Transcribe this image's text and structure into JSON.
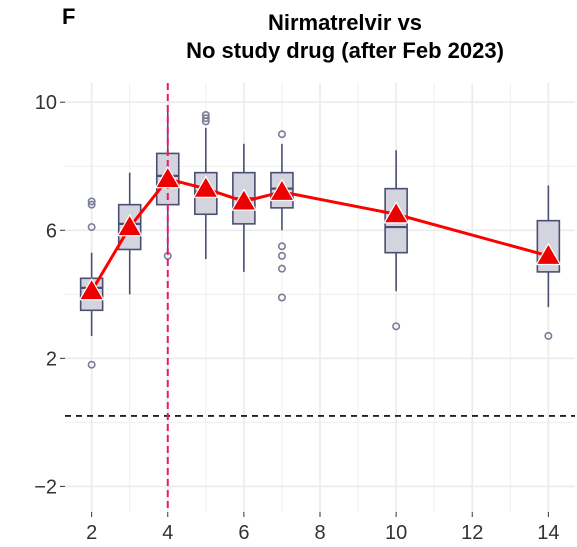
{
  "panel_label": "F",
  "title_lines": [
    "Nirmatrelvir vs",
    "No study drug (after Feb 2023)"
  ],
  "colors": {
    "box_fill": "#d4d4de",
    "box_stroke": "#4a4f73",
    "outlier": "#7a7d96",
    "mean_line": "#ff0000",
    "mean_marker": "#ee0000",
    "vline": "#e8196a",
    "hline": "#000000",
    "grid": "#ebebeb"
  },
  "chart_data": {
    "type": "box",
    "title": "Nirmatrelvir vs No study drug (after Feb 2023)",
    "xlim": [
      1.3,
      14.7
    ],
    "ylim": [
      -2.8,
      10.6
    ],
    "x_ticks": [
      2,
      4,
      6,
      8,
      10,
      12,
      14
    ],
    "y_ticks": [
      -2,
      2,
      6,
      10
    ],
    "grid": true,
    "reference_lines": {
      "vertical_x": 4,
      "horizontal_y": 0.2
    },
    "boxes": [
      {
        "x": 2,
        "whisker_low": 2.7,
        "q1": 3.5,
        "median": 4.2,
        "q3": 4.5,
        "whisker_high": 5.3,
        "outliers": [
          1.8,
          6.1,
          6.8,
          6.9
        ]
      },
      {
        "x": 3,
        "whisker_low": 4.0,
        "q1": 5.4,
        "median": 6.2,
        "q3": 6.8,
        "whisker_high": 7.8,
        "outliers": []
      },
      {
        "x": 4,
        "whisker_low": 5.4,
        "q1": 6.8,
        "median": 7.7,
        "q3": 8.4,
        "whisker_high": 9.7,
        "outliers": [
          5.2
        ]
      },
      {
        "x": 5,
        "whisker_low": 5.1,
        "q1": 6.5,
        "median": 7.2,
        "q3": 7.8,
        "whisker_high": 9.2,
        "outliers": [
          9.4,
          9.5,
          9.6
        ]
      },
      {
        "x": 6,
        "whisker_low": 4.7,
        "q1": 6.2,
        "median": 7.0,
        "q3": 7.8,
        "whisker_high": 8.7,
        "outliers": []
      },
      {
        "x": 7,
        "whisker_low": 6.0,
        "q1": 6.7,
        "median": 7.3,
        "q3": 7.8,
        "whisker_high": 8.7,
        "outliers": [
          9.0,
          5.5,
          5.2,
          4.8,
          3.9
        ]
      },
      {
        "x": 10,
        "whisker_low": 4.1,
        "q1": 5.3,
        "median": 6.1,
        "q3": 7.3,
        "whisker_high": 8.5,
        "outliers": [
          3.0
        ]
      },
      {
        "x": 14,
        "whisker_low": 3.6,
        "q1": 4.7,
        "median": 5.0,
        "q3": 6.3,
        "whisker_high": 7.4,
        "outliers": [
          2.7
        ]
      }
    ],
    "mean_series": {
      "x": [
        2,
        3,
        4,
        5,
        6,
        7,
        10,
        14
      ],
      "y": [
        4.1,
        6.1,
        7.6,
        7.3,
        6.9,
        7.2,
        6.5,
        5.2
      ]
    }
  }
}
